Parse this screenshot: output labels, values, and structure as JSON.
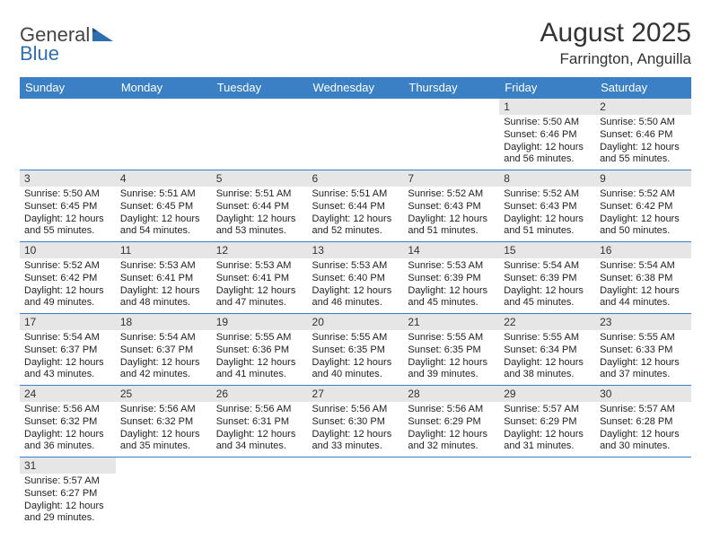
{
  "logo": {
    "text1": "General",
    "text2": "Blue"
  },
  "title": "August 2025",
  "location": "Farrington, Anguilla",
  "colors": {
    "header_bg": "#3b7fc4",
    "header_text": "#ffffff",
    "daynum_bg": "#e6e6e6",
    "row_border": "#3b7fc4",
    "logo_accent": "#2f6fb0"
  },
  "weekdays": [
    "Sunday",
    "Monday",
    "Tuesday",
    "Wednesday",
    "Thursday",
    "Friday",
    "Saturday"
  ],
  "weeks": [
    [
      {
        "n": "",
        "sr": "",
        "ss": "",
        "dl": ""
      },
      {
        "n": "",
        "sr": "",
        "ss": "",
        "dl": ""
      },
      {
        "n": "",
        "sr": "",
        "ss": "",
        "dl": ""
      },
      {
        "n": "",
        "sr": "",
        "ss": "",
        "dl": ""
      },
      {
        "n": "",
        "sr": "",
        "ss": "",
        "dl": ""
      },
      {
        "n": "1",
        "sr": "Sunrise: 5:50 AM",
        "ss": "Sunset: 6:46 PM",
        "dl": "Daylight: 12 hours and 56 minutes."
      },
      {
        "n": "2",
        "sr": "Sunrise: 5:50 AM",
        "ss": "Sunset: 6:46 PM",
        "dl": "Daylight: 12 hours and 55 minutes."
      }
    ],
    [
      {
        "n": "3",
        "sr": "Sunrise: 5:50 AM",
        "ss": "Sunset: 6:45 PM",
        "dl": "Daylight: 12 hours and 55 minutes."
      },
      {
        "n": "4",
        "sr": "Sunrise: 5:51 AM",
        "ss": "Sunset: 6:45 PM",
        "dl": "Daylight: 12 hours and 54 minutes."
      },
      {
        "n": "5",
        "sr": "Sunrise: 5:51 AM",
        "ss": "Sunset: 6:44 PM",
        "dl": "Daylight: 12 hours and 53 minutes."
      },
      {
        "n": "6",
        "sr": "Sunrise: 5:51 AM",
        "ss": "Sunset: 6:44 PM",
        "dl": "Daylight: 12 hours and 52 minutes."
      },
      {
        "n": "7",
        "sr": "Sunrise: 5:52 AM",
        "ss": "Sunset: 6:43 PM",
        "dl": "Daylight: 12 hours and 51 minutes."
      },
      {
        "n": "8",
        "sr": "Sunrise: 5:52 AM",
        "ss": "Sunset: 6:43 PM",
        "dl": "Daylight: 12 hours and 51 minutes."
      },
      {
        "n": "9",
        "sr": "Sunrise: 5:52 AM",
        "ss": "Sunset: 6:42 PM",
        "dl": "Daylight: 12 hours and 50 minutes."
      }
    ],
    [
      {
        "n": "10",
        "sr": "Sunrise: 5:52 AM",
        "ss": "Sunset: 6:42 PM",
        "dl": "Daylight: 12 hours and 49 minutes."
      },
      {
        "n": "11",
        "sr": "Sunrise: 5:53 AM",
        "ss": "Sunset: 6:41 PM",
        "dl": "Daylight: 12 hours and 48 minutes."
      },
      {
        "n": "12",
        "sr": "Sunrise: 5:53 AM",
        "ss": "Sunset: 6:41 PM",
        "dl": "Daylight: 12 hours and 47 minutes."
      },
      {
        "n": "13",
        "sr": "Sunrise: 5:53 AM",
        "ss": "Sunset: 6:40 PM",
        "dl": "Daylight: 12 hours and 46 minutes."
      },
      {
        "n": "14",
        "sr": "Sunrise: 5:53 AM",
        "ss": "Sunset: 6:39 PM",
        "dl": "Daylight: 12 hours and 45 minutes."
      },
      {
        "n": "15",
        "sr": "Sunrise: 5:54 AM",
        "ss": "Sunset: 6:39 PM",
        "dl": "Daylight: 12 hours and 45 minutes."
      },
      {
        "n": "16",
        "sr": "Sunrise: 5:54 AM",
        "ss": "Sunset: 6:38 PM",
        "dl": "Daylight: 12 hours and 44 minutes."
      }
    ],
    [
      {
        "n": "17",
        "sr": "Sunrise: 5:54 AM",
        "ss": "Sunset: 6:37 PM",
        "dl": "Daylight: 12 hours and 43 minutes."
      },
      {
        "n": "18",
        "sr": "Sunrise: 5:54 AM",
        "ss": "Sunset: 6:37 PM",
        "dl": "Daylight: 12 hours and 42 minutes."
      },
      {
        "n": "19",
        "sr": "Sunrise: 5:55 AM",
        "ss": "Sunset: 6:36 PM",
        "dl": "Daylight: 12 hours and 41 minutes."
      },
      {
        "n": "20",
        "sr": "Sunrise: 5:55 AM",
        "ss": "Sunset: 6:35 PM",
        "dl": "Daylight: 12 hours and 40 minutes."
      },
      {
        "n": "21",
        "sr": "Sunrise: 5:55 AM",
        "ss": "Sunset: 6:35 PM",
        "dl": "Daylight: 12 hours and 39 minutes."
      },
      {
        "n": "22",
        "sr": "Sunrise: 5:55 AM",
        "ss": "Sunset: 6:34 PM",
        "dl": "Daylight: 12 hours and 38 minutes."
      },
      {
        "n": "23",
        "sr": "Sunrise: 5:55 AM",
        "ss": "Sunset: 6:33 PM",
        "dl": "Daylight: 12 hours and 37 minutes."
      }
    ],
    [
      {
        "n": "24",
        "sr": "Sunrise: 5:56 AM",
        "ss": "Sunset: 6:32 PM",
        "dl": "Daylight: 12 hours and 36 minutes."
      },
      {
        "n": "25",
        "sr": "Sunrise: 5:56 AM",
        "ss": "Sunset: 6:32 PM",
        "dl": "Daylight: 12 hours and 35 minutes."
      },
      {
        "n": "26",
        "sr": "Sunrise: 5:56 AM",
        "ss": "Sunset: 6:31 PM",
        "dl": "Daylight: 12 hours and 34 minutes."
      },
      {
        "n": "27",
        "sr": "Sunrise: 5:56 AM",
        "ss": "Sunset: 6:30 PM",
        "dl": "Daylight: 12 hours and 33 minutes."
      },
      {
        "n": "28",
        "sr": "Sunrise: 5:56 AM",
        "ss": "Sunset: 6:29 PM",
        "dl": "Daylight: 12 hours and 32 minutes."
      },
      {
        "n": "29",
        "sr": "Sunrise: 5:57 AM",
        "ss": "Sunset: 6:29 PM",
        "dl": "Daylight: 12 hours and 31 minutes."
      },
      {
        "n": "30",
        "sr": "Sunrise: 5:57 AM",
        "ss": "Sunset: 6:28 PM",
        "dl": "Daylight: 12 hours and 30 minutes."
      }
    ],
    [
      {
        "n": "31",
        "sr": "Sunrise: 5:57 AM",
        "ss": "Sunset: 6:27 PM",
        "dl": "Daylight: 12 hours and 29 minutes."
      },
      {
        "n": "",
        "sr": "",
        "ss": "",
        "dl": ""
      },
      {
        "n": "",
        "sr": "",
        "ss": "",
        "dl": ""
      },
      {
        "n": "",
        "sr": "",
        "ss": "",
        "dl": ""
      },
      {
        "n": "",
        "sr": "",
        "ss": "",
        "dl": ""
      },
      {
        "n": "",
        "sr": "",
        "ss": "",
        "dl": ""
      },
      {
        "n": "",
        "sr": "",
        "ss": "",
        "dl": ""
      }
    ]
  ]
}
